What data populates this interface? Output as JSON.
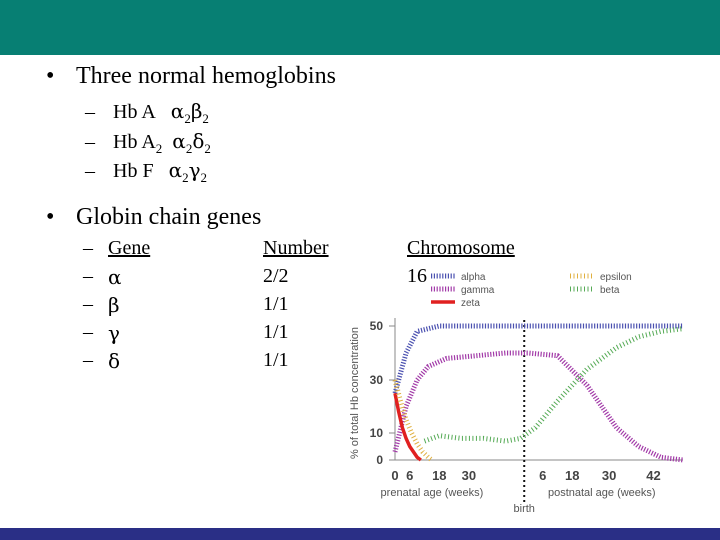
{
  "slide": {
    "bullet1": {
      "marker": "•",
      "text": "Three normal hemoglobins"
    },
    "hemoglobins": [
      {
        "dash": "–",
        "name": "Hb A",
        "c1": "α",
        "s1": "2",
        "c2": "β",
        "s2": "2"
      },
      {
        "dash": "–",
        "name": "Hb A",
        "namesub": "2",
        "c1": "α",
        "s1": "2",
        "c2": "δ",
        "s2": "2"
      },
      {
        "dash": "–",
        "name": "Hb F",
        "c1": "α",
        "s1": "2",
        "c2": "γ",
        "s2": "2"
      }
    ],
    "bullet2": {
      "marker": "•",
      "text": "Globin chain genes"
    },
    "table": {
      "headers": {
        "dash": "–",
        "gene": "Gene",
        "number": "Number",
        "chromosome": "Chromosome"
      },
      "rows": [
        {
          "dash": "–",
          "gene": "α",
          "number": "2/2",
          "chromosome": "16"
        },
        {
          "dash": "–",
          "gene": "β",
          "number": "1/1",
          "chromosome": ""
        },
        {
          "dash": "–",
          "gene": "γ",
          "number": "1/1",
          "chromosome": ""
        },
        {
          "dash": "–",
          "gene": "δ",
          "number": "1/1",
          "chromosome": ""
        }
      ]
    }
  },
  "colors": {
    "topbar": "#077f73",
    "bottombar": "#2a2f86"
  },
  "chart_data": {
    "type": "line",
    "ylabel": "% of total Hb concentration",
    "yticks": [
      "0",
      "10",
      "30",
      "50"
    ],
    "xticks_prenatal": [
      "0",
      "6",
      "18",
      "30"
    ],
    "xticks_postnatal": [
      "6",
      "18",
      "30",
      "42"
    ],
    "xlabel_prenatal": "prenatal age (weeks)",
    "xlabel_postnatal": "postnatal age (weeks)",
    "birth_label": "birth",
    "legend_position": "top",
    "series": [
      {
        "name": "alpha",
        "color": "#4a50b0",
        "pattern": "dotted",
        "points": [
          [
            0,
            25
          ],
          [
            3,
            40
          ],
          [
            6,
            48
          ],
          [
            12,
            50
          ],
          [
            30,
            50
          ],
          [
            36,
            50
          ],
          [
            48,
            50
          ],
          [
            60,
            50
          ],
          [
            72,
            50
          ],
          [
            78,
            50
          ]
        ]
      },
      {
        "name": "gamma",
        "color": "#a23aa8",
        "pattern": "dotted",
        "points": [
          [
            0,
            3
          ],
          [
            3,
            20
          ],
          [
            6,
            30
          ],
          [
            9,
            35
          ],
          [
            14,
            38
          ],
          [
            30,
            40
          ],
          [
            36,
            40
          ],
          [
            44,
            39
          ],
          [
            52,
            28
          ],
          [
            60,
            12
          ],
          [
            66,
            5
          ],
          [
            72,
            1
          ],
          [
            78,
            0
          ]
        ]
      },
      {
        "name": "zeta",
        "color": "#e02020",
        "pattern": "solid",
        "points": [
          [
            0,
            25
          ],
          [
            1,
            18
          ],
          [
            2,
            12
          ],
          [
            3,
            8
          ],
          [
            4,
            5
          ],
          [
            5,
            3
          ],
          [
            6,
            1
          ],
          [
            7,
            0
          ]
        ]
      },
      {
        "name": "epsilon",
        "color": "#e0b040",
        "pattern": "hatched",
        "points": [
          [
            0,
            30
          ],
          [
            1.5,
            22
          ],
          [
            3,
            15
          ],
          [
            4.5,
            10
          ],
          [
            6,
            6
          ],
          [
            7.5,
            3
          ],
          [
            9,
            1
          ],
          [
            10,
            0
          ]
        ]
      },
      {
        "name": "beta",
        "color": "#55aa55",
        "pattern": "hatched",
        "points": [
          [
            8,
            7
          ],
          [
            12,
            9
          ],
          [
            18,
            8
          ],
          [
            24,
            8
          ],
          [
            30,
            7
          ],
          [
            34,
            8
          ],
          [
            38,
            12
          ],
          [
            44,
            22
          ],
          [
            52,
            34
          ],
          [
            60,
            42
          ],
          [
            66,
            46
          ],
          [
            72,
            48
          ],
          [
            78,
            49
          ]
        ]
      }
    ],
    "ylim": [
      0,
      50
    ],
    "birth_x": 36
  }
}
